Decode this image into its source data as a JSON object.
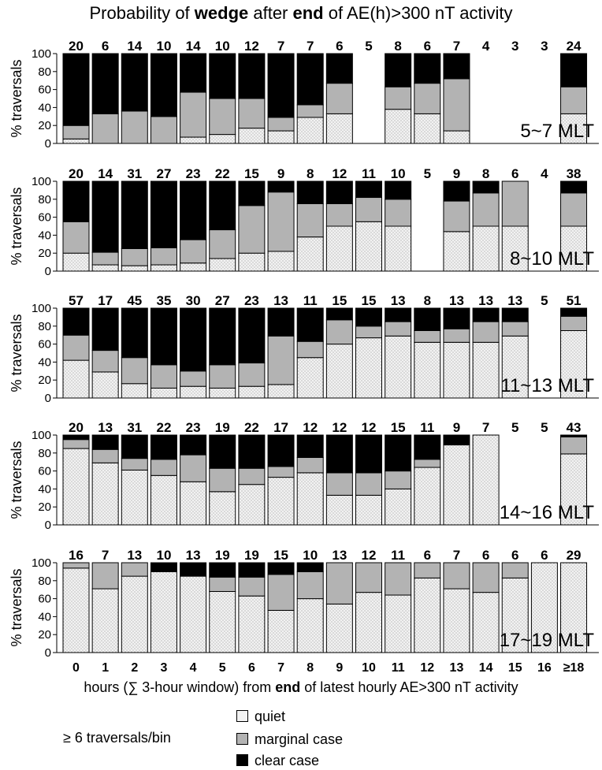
{
  "title_parts": {
    "p1": "Probability of ",
    "b1": "wedge",
    "p2": " after ",
    "b2": "end",
    "p3": " of AE(h)>300 nT activity"
  },
  "xlabel_parts": {
    "p1": "hours (∑ 3-hour window) from ",
    "b1": "end",
    "p2": " of latest hourly AE>300 nT activity"
  },
  "legend": {
    "note": "≥ 6 traversals/bin",
    "items": [
      {
        "label": "quiet",
        "color": "#f2f2f2"
      },
      {
        "label": "marginal case",
        "color": "#b3b3b3"
      },
      {
        "label": "clear case",
        "color": "#000000"
      }
    ]
  },
  "colors": {
    "quiet": "#f2f2f2",
    "marginal": "#b3b3b3",
    "clear": "#000000"
  },
  "chart_data": [
    {
      "type": "bar",
      "stacked": true,
      "panel_label": "5~7 MLT",
      "ylabel": "% traversals",
      "ylim": [
        0,
        100
      ],
      "yticks": [
        0,
        20,
        40,
        60,
        80,
        100
      ],
      "categories": [
        "0",
        "1",
        "2",
        "3",
        "4",
        "5",
        "6",
        "7",
        "8",
        "9",
        "10",
        "11",
        "12",
        "13",
        "14",
        "15",
        "16",
        "≥18"
      ],
      "counts": [
        "20",
        "6",
        "14",
        "10",
        "14",
        "10",
        "12",
        "7",
        "7",
        "6",
        "5",
        "8",
        "6",
        "7",
        "4",
        "3",
        "3",
        "24"
      ],
      "series": [
        {
          "name": "quiet",
          "values": [
            5,
            0,
            0,
            0,
            7,
            10,
            17,
            14,
            29,
            33,
            null,
            38,
            33,
            14,
            null,
            null,
            null,
            33
          ]
        },
        {
          "name": "marginal case",
          "values": [
            15,
            33,
            36,
            30,
            50,
            40,
            33,
            15,
            14,
            34,
            null,
            25,
            34,
            58,
            null,
            null,
            null,
            30
          ]
        },
        {
          "name": "clear case",
          "values": [
            80,
            67,
            64,
            70,
            43,
            50,
            50,
            71,
            57,
            33,
            null,
            37,
            33,
            28,
            null,
            null,
            null,
            37
          ]
        }
      ]
    },
    {
      "type": "bar",
      "stacked": true,
      "panel_label": "8~10 MLT",
      "ylabel": "% traversals",
      "ylim": [
        0,
        100
      ],
      "yticks": [
        0,
        20,
        40,
        60,
        80,
        100
      ],
      "categories": [
        "0",
        "1",
        "2",
        "3",
        "4",
        "5",
        "6",
        "7",
        "8",
        "9",
        "10",
        "11",
        "12",
        "13",
        "14",
        "15",
        "16",
        "≥18"
      ],
      "counts": [
        "20",
        "14",
        "31",
        "27",
        "23",
        "22",
        "15",
        "9",
        "8",
        "12",
        "11",
        "10",
        "5",
        "9",
        "8",
        "6",
        "4",
        "38"
      ],
      "series": [
        {
          "name": "quiet",
          "values": [
            20,
            7,
            6,
            7,
            9,
            14,
            20,
            22,
            38,
            50,
            55,
            50,
            null,
            44,
            50,
            50,
            null,
            50
          ]
        },
        {
          "name": "marginal case",
          "values": [
            35,
            14,
            19,
            19,
            26,
            32,
            53,
            66,
            37,
            25,
            27,
            30,
            null,
            34,
            37,
            50,
            null,
            37
          ]
        },
        {
          "name": "clear case",
          "values": [
            45,
            79,
            75,
            74,
            65,
            54,
            27,
            12,
            25,
            25,
            18,
            20,
            null,
            22,
            13,
            0,
            null,
            13
          ]
        }
      ]
    },
    {
      "type": "bar",
      "stacked": true,
      "panel_label": "11~13 MLT",
      "ylabel": "% traversals",
      "ylim": [
        0,
        100
      ],
      "yticks": [
        0,
        20,
        40,
        60,
        80,
        100
      ],
      "categories": [
        "0",
        "1",
        "2",
        "3",
        "4",
        "5",
        "6",
        "7",
        "8",
        "9",
        "10",
        "11",
        "12",
        "13",
        "14",
        "15",
        "16",
        "≥18"
      ],
      "counts": [
        "57",
        "17",
        "45",
        "35",
        "30",
        "27",
        "23",
        "13",
        "11",
        "15",
        "15",
        "13",
        "8",
        "13",
        "13",
        "13",
        "5",
        "51"
      ],
      "series": [
        {
          "name": "quiet",
          "values": [
            42,
            29,
            16,
            11,
            13,
            11,
            13,
            15,
            45,
            60,
            67,
            69,
            62,
            62,
            62,
            69,
            null,
            75
          ]
        },
        {
          "name": "marginal case",
          "values": [
            28,
            24,
            29,
            26,
            17,
            26,
            26,
            54,
            18,
            27,
            13,
            16,
            13,
            15,
            23,
            16,
            null,
            16
          ]
        },
        {
          "name": "clear case",
          "values": [
            30,
            47,
            55,
            63,
            70,
            63,
            61,
            31,
            37,
            13,
            20,
            15,
            25,
            23,
            15,
            15,
            null,
            9
          ]
        }
      ]
    },
    {
      "type": "bar",
      "stacked": true,
      "panel_label": "14~16 MLT",
      "ylabel": "% traversals",
      "ylim": [
        0,
        100
      ],
      "yticks": [
        0,
        20,
        40,
        60,
        80,
        100
      ],
      "categories": [
        "0",
        "1",
        "2",
        "3",
        "4",
        "5",
        "6",
        "7",
        "8",
        "9",
        "10",
        "11",
        "12",
        "13",
        "14",
        "15",
        "16",
        "≥18"
      ],
      "counts": [
        "20",
        "13",
        "31",
        "22",
        "23",
        "19",
        "22",
        "17",
        "12",
        "12",
        "12",
        "15",
        "11",
        "9",
        "7",
        "5",
        "5",
        "43"
      ],
      "series": [
        {
          "name": "quiet",
          "values": [
            85,
            69,
            61,
            55,
            48,
            37,
            45,
            53,
            58,
            33,
            33,
            40,
            64,
            89,
            100,
            null,
            null,
            79
          ]
        },
        {
          "name": "marginal case",
          "values": [
            10,
            15,
            13,
            18,
            30,
            26,
            18,
            12,
            17,
            25,
            25,
            20,
            9,
            0,
            0,
            null,
            null,
            19
          ]
        },
        {
          "name": "clear case",
          "values": [
            5,
            16,
            26,
            27,
            22,
            37,
            37,
            35,
            25,
            42,
            42,
            40,
            27,
            11,
            0,
            null,
            null,
            2
          ]
        }
      ]
    },
    {
      "type": "bar",
      "stacked": true,
      "panel_label": "17~19 MLT",
      "ylabel": "% traversals",
      "ylim": [
        0,
        100
      ],
      "yticks": [
        0,
        20,
        40,
        60,
        80,
        100
      ],
      "categories": [
        "0",
        "1",
        "2",
        "3",
        "4",
        "5",
        "6",
        "7",
        "8",
        "9",
        "10",
        "11",
        "12",
        "13",
        "14",
        "15",
        "16",
        "≥18"
      ],
      "counts": [
        "16",
        "7",
        "13",
        "10",
        "13",
        "19",
        "19",
        "15",
        "10",
        "13",
        "12",
        "11",
        "6",
        "7",
        "6",
        "6",
        "6",
        "29"
      ],
      "series": [
        {
          "name": "quiet",
          "values": [
            94,
            71,
            85,
            90,
            85,
            68,
            63,
            47,
            60,
            54,
            67,
            64,
            83,
            71,
            67,
            83,
            100,
            100
          ]
        },
        {
          "name": "marginal case",
          "values": [
            6,
            29,
            15,
            0,
            0,
            16,
            21,
            40,
            30,
            46,
            33,
            36,
            17,
            29,
            33,
            17,
            0,
            0
          ]
        },
        {
          "name": "clear case",
          "values": [
            0,
            0,
            0,
            10,
            15,
            16,
            16,
            13,
            10,
            0,
            0,
            0,
            0,
            0,
            0,
            0,
            0,
            0
          ]
        }
      ]
    }
  ]
}
